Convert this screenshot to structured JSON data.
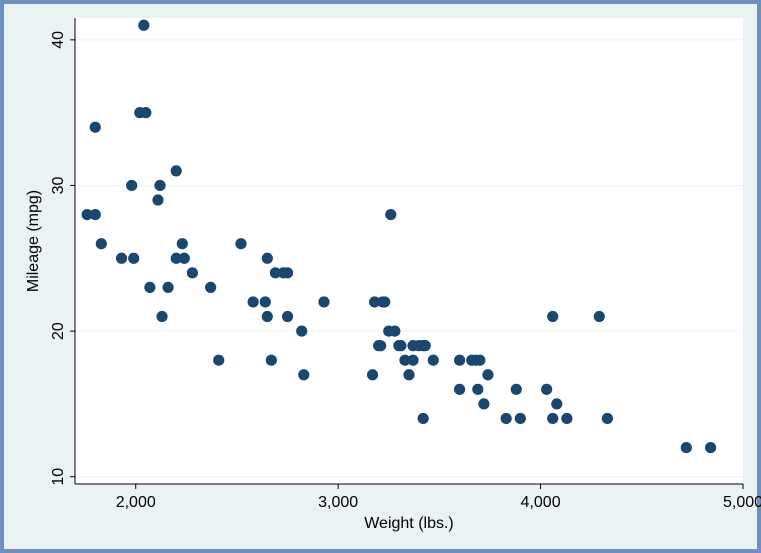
{
  "chart_data": {
    "type": "scatter",
    "title": "",
    "xlabel": "Weight (lbs.)",
    "ylabel": "Mileage (mpg)",
    "xlim": [
      1700,
      5000
    ],
    "ylim": [
      9.5,
      41.5
    ],
    "xticks": [
      2000,
      3000,
      4000,
      5000
    ],
    "xtick_labels": [
      "2,000",
      "3,000",
      "4,000",
      "5,000"
    ],
    "yticks": [
      10,
      20,
      30,
      40
    ],
    "ytick_labels": [
      "10",
      "20",
      "30",
      "40"
    ],
    "grid": "horizontal",
    "colors": {
      "marker": "#1a476f",
      "plot_background": "#ffffff",
      "outer_background": "#eaf2f3",
      "frame": "#6f8fbf",
      "grid": "#eaf2f3"
    },
    "points": [
      {
        "x": 1760,
        "y": 28
      },
      {
        "x": 1800,
        "y": 34
      },
      {
        "x": 1800,
        "y": 28
      },
      {
        "x": 1830,
        "y": 26
      },
      {
        "x": 1930,
        "y": 25
      },
      {
        "x": 1980,
        "y": 30
      },
      {
        "x": 1990,
        "y": 25
      },
      {
        "x": 2020,
        "y": 35
      },
      {
        "x": 2040,
        "y": 41
      },
      {
        "x": 2050,
        "y": 35
      },
      {
        "x": 2070,
        "y": 23
      },
      {
        "x": 2110,
        "y": 29
      },
      {
        "x": 2120,
        "y": 30
      },
      {
        "x": 2130,
        "y": 21
      },
      {
        "x": 2160,
        "y": 23
      },
      {
        "x": 2200,
        "y": 31
      },
      {
        "x": 2200,
        "y": 25
      },
      {
        "x": 2230,
        "y": 26
      },
      {
        "x": 2240,
        "y": 25
      },
      {
        "x": 2280,
        "y": 24
      },
      {
        "x": 2370,
        "y": 23
      },
      {
        "x": 2410,
        "y": 18
      },
      {
        "x": 2520,
        "y": 26
      },
      {
        "x": 2580,
        "y": 22
      },
      {
        "x": 2640,
        "y": 22
      },
      {
        "x": 2650,
        "y": 25
      },
      {
        "x": 2650,
        "y": 21
      },
      {
        "x": 2670,
        "y": 18
      },
      {
        "x": 2690,
        "y": 24
      },
      {
        "x": 2730,
        "y": 24
      },
      {
        "x": 2750,
        "y": 24
      },
      {
        "x": 2750,
        "y": 21
      },
      {
        "x": 2820,
        "y": 20
      },
      {
        "x": 2830,
        "y": 17
      },
      {
        "x": 2930,
        "y": 22
      },
      {
        "x": 3170,
        "y": 17
      },
      {
        "x": 3180,
        "y": 22
      },
      {
        "x": 3200,
        "y": 19
      },
      {
        "x": 3210,
        "y": 19
      },
      {
        "x": 3220,
        "y": 22
      },
      {
        "x": 3230,
        "y": 22
      },
      {
        "x": 3250,
        "y": 20
      },
      {
        "x": 3260,
        "y": 28
      },
      {
        "x": 3280,
        "y": 20
      },
      {
        "x": 3300,
        "y": 19
      },
      {
        "x": 3310,
        "y": 19
      },
      {
        "x": 3330,
        "y": 18
      },
      {
        "x": 3350,
        "y": 17
      },
      {
        "x": 3370,
        "y": 19
      },
      {
        "x": 3370,
        "y": 18
      },
      {
        "x": 3400,
        "y": 19
      },
      {
        "x": 3420,
        "y": 19
      },
      {
        "x": 3420,
        "y": 14
      },
      {
        "x": 3430,
        "y": 19
      },
      {
        "x": 3470,
        "y": 18
      },
      {
        "x": 3600,
        "y": 18
      },
      {
        "x": 3600,
        "y": 16
      },
      {
        "x": 3660,
        "y": 18
      },
      {
        "x": 3680,
        "y": 18
      },
      {
        "x": 3690,
        "y": 16
      },
      {
        "x": 3700,
        "y": 18
      },
      {
        "x": 3720,
        "y": 15
      },
      {
        "x": 3740,
        "y": 17
      },
      {
        "x": 3830,
        "y": 14
      },
      {
        "x": 3880,
        "y": 16
      },
      {
        "x": 3900,
        "y": 14
      },
      {
        "x": 4030,
        "y": 16
      },
      {
        "x": 4060,
        "y": 21
      },
      {
        "x": 4060,
        "y": 14
      },
      {
        "x": 4080,
        "y": 15
      },
      {
        "x": 4130,
        "y": 14
      },
      {
        "x": 4290,
        "y": 21
      },
      {
        "x": 4330,
        "y": 14
      },
      {
        "x": 4720,
        "y": 12
      },
      {
        "x": 4840,
        "y": 12
      }
    ]
  }
}
